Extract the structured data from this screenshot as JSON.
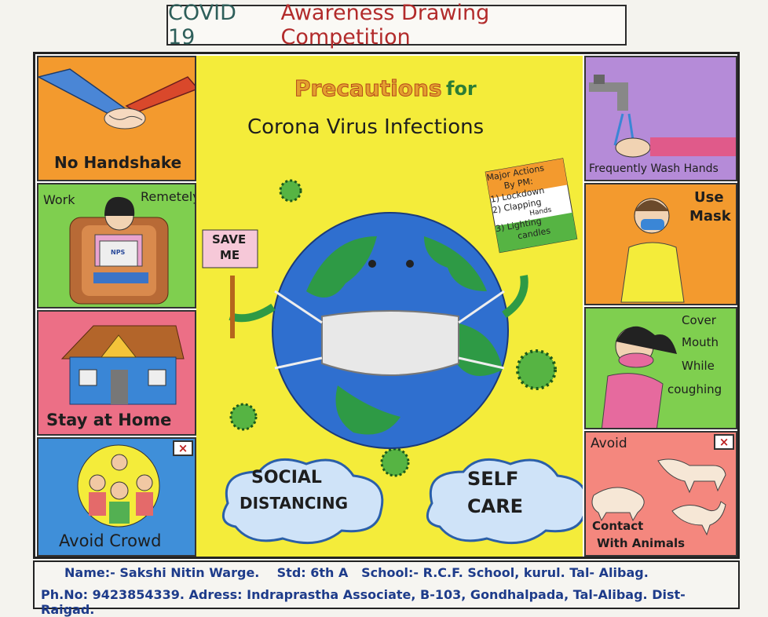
{
  "header": {
    "title_part1": "COVID 19",
    "title_part2": "Awareness Drawing Competition"
  },
  "center": {
    "heading_part1": "Precautions",
    "heading_part2": "for",
    "subheading": "Corona Virus Infections",
    "sign_line1": "SAVE",
    "sign_line2": "ME",
    "pm_card": [
      "Major Actions",
      "By PM:",
      "1) Lockdown",
      "2) Clapping",
      "Hands",
      "3) Lighting",
      "candles"
    ],
    "cloud_left_line1": "SOCIAL",
    "cloud_left_line2": "DISTANCING",
    "cloud_right_line1": "SELF",
    "cloud_right_line2": "CARE"
  },
  "panels": {
    "no_handshake": "No Handshake",
    "work_remotely_word1": "Work",
    "work_remotely_word2": "Remetely",
    "laptop_logo": "NPS",
    "stay_home": "Stay at Home",
    "avoid_crowd": "Avoid Crowd",
    "wash_hands": "Frequently Wash Hands",
    "mask_line1": "Use",
    "mask_line2": "Mask",
    "cover_line1": "Cover",
    "cover_line2": "Mouth",
    "cover_line3": "While",
    "cover_line4": "coughing",
    "animals_line1": "Avoid",
    "animals_line2": "Contact",
    "animals_line3": "With Animals",
    "cross_mark": "×"
  },
  "footer": {
    "name_label": "Name:-",
    "name": "Sakshi Nitin Warge.",
    "std_label": "Std:",
    "std": "6th A",
    "school_label": "School:-",
    "school": "R.C.F. School, kurul. Tal- Alibag.",
    "phone_label": "Ph.No:",
    "phone": "9423854339.",
    "address_label": "Adress:",
    "address": "Indraprastha Associate, B-103, Gondhalpada, Tal-Alibag. Dist-Raigad."
  },
  "colors": {
    "center_bg": "#f4ec3a",
    "orange_panel": "#f39a2e",
    "green_panel": "#7fcf4f",
    "pink_panel": "#ec6f86",
    "blue_panel": "#3f8fd9",
    "purple_panel": "#b58bd8",
    "salmon_panel": "#f4877e",
    "title_red": "#b22b2b",
    "footer_blue": "#1d3b8a"
  }
}
